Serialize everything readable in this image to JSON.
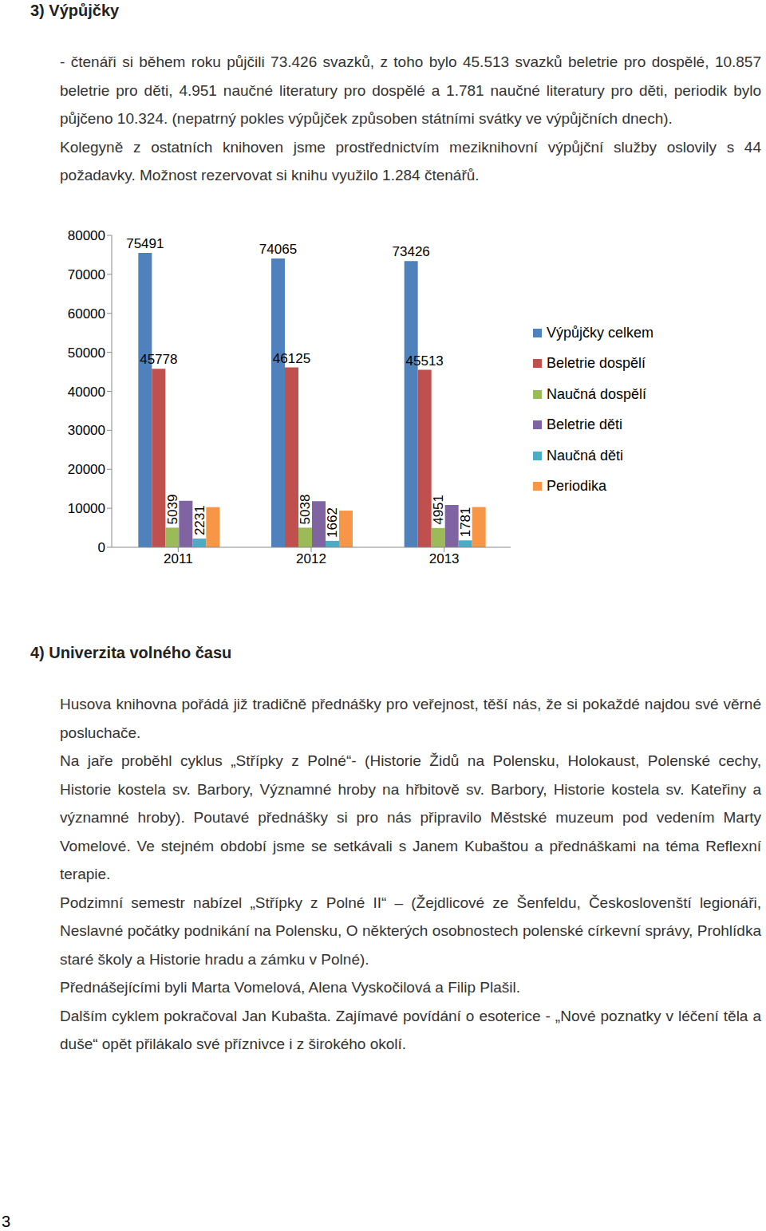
{
  "document": {
    "page_number": "3",
    "sections": [
      {
        "heading": "3) Výpůjčky",
        "paragraphs": [
          "- čtenáři si během roku půjčili 73.426 svazků, z toho bylo 45.513 svazků beletrie pro dospělé, 10.857 beletrie pro děti, 4.951 naučné literatury pro dospělé a 1.781 naučné literatury pro děti, periodik bylo půjčeno 10.324. (nepatrný pokles výpůjček způsoben státními svátky ve výpůjčních dnech).",
          "Kolegyně z ostatních knihoven jsme prostřednictvím meziknihovní výpůjční služby oslovily s 44 požadavky. Možnost rezervovat si knihu využilo 1.284 čtenářů."
        ]
      },
      {
        "heading": "4) Univerzita volného času",
        "paragraphs": [
          "Husova knihovna pořádá již tradičně přednášky pro veřejnost, těší nás, že si pokaždé najdou své věrné posluchače.",
          "Na jaře proběhl cyklus „Střípky z Polné“- (Historie Židů na Polensku, Holokaust, Polenské cechy, Historie kostela sv. Barbory, Významné hroby na hřbitově sv. Barbory, Historie kostela sv. Kateřiny a významné hroby). Poutavé přednášky si pro nás připravilo Městské muzeum pod vedením Marty Vomelové. Ve stejném období jsme se setkávali s Janem Kubaštou a přednáškami na téma Reflexní terapie.",
          "Podzimní semestr nabízel „Střípky z Polné II“ – (Žejdlicové ze Šenfeldu, Českoslovenští legionáři, Neslavné počátky podnikání na Polensku, O některých osobnostech polenské církevní správy, Prohlídka staré školy a Historie hradu a zámku v Polné).",
          "Přednášejícími byli Marta Vomelová, Alena Vyskočilová a Filip Plašil.",
          "Dalším cyklem pokračoval Jan Kubašta. Zajímavé povídání o esoterice - „Nové poznatky v léčení těla a duše“ opět přilákalo své příznivce i z širokého okolí."
        ]
      }
    ]
  },
  "chart_data": {
    "type": "bar",
    "categories": [
      "2011",
      "2012",
      "2013"
    ],
    "series": [
      {
        "name": "Výpůjčky celkem",
        "color": "#4f81bd",
        "values": [
          75491,
          74065,
          73426
        ],
        "data_labels": true
      },
      {
        "name": "Beletrie dospělí",
        "color": "#c0504d",
        "values": [
          45778,
          46125,
          45513
        ],
        "data_labels": true
      },
      {
        "name": "Naučná dospělí",
        "color": "#9bbb59",
        "values": [
          5039,
          5038,
          4951
        ],
        "data_labels": true
      },
      {
        "name": "Beletrie děti",
        "color": "#8064a2",
        "values": [
          11900,
          11800,
          10857
        ]
      },
      {
        "name": "Naučná děti",
        "color": "#4bacc6",
        "values": [
          2231,
          1662,
          1781
        ],
        "data_labels": true
      },
      {
        "name": "Periodika",
        "color": "#f79646",
        "values": [
          10300,
          9400,
          10324
        ]
      }
    ],
    "ylim": [
      0,
      80000
    ],
    "yticks": [
      0,
      10000,
      20000,
      30000,
      40000,
      50000,
      60000,
      70000,
      80000
    ],
    "grid": false,
    "legend": "right"
  }
}
